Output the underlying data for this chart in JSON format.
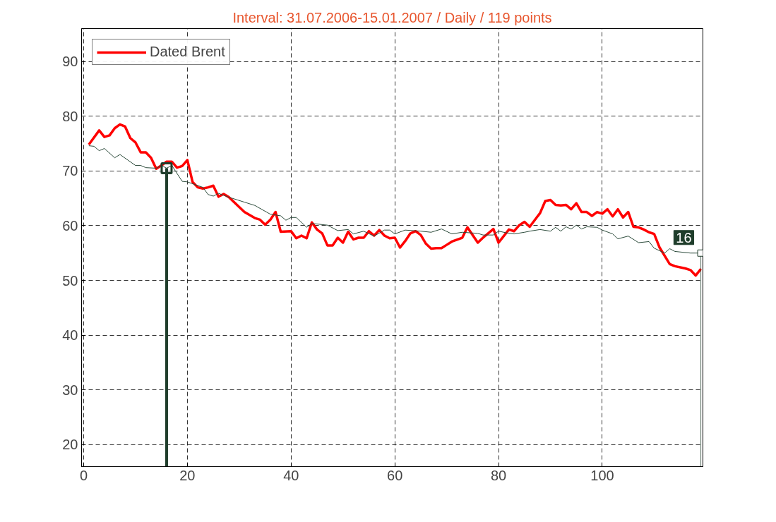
{
  "chart_data": {
    "type": "line",
    "title": "Interval: 31.07.2006-15.01.2007 / Daily / 119 points",
    "xlim": [
      -0.4,
      119.4
    ],
    "ylim": [
      16,
      96
    ],
    "xticks": [
      0,
      20,
      40,
      60,
      80,
      100
    ],
    "yticks": [
      20,
      30,
      40,
      50,
      60,
      70,
      80,
      90
    ],
    "grid": true,
    "legend": "top left",
    "annotations": [
      {
        "text": "16",
        "x": 119,
        "y": 55
      }
    ],
    "series": [
      {
        "name": "Dated Brent",
        "color": "#ff0000",
        "x": [
          1,
          3,
          4,
          5,
          6,
          7,
          8,
          9,
          10,
          11,
          12,
          13,
          14,
          15,
          16,
          17,
          18,
          19,
          20,
          21,
          22,
          23,
          24,
          25,
          26,
          27,
          28,
          29,
          31,
          33,
          34,
          35,
          36,
          37,
          38,
          40,
          41,
          42,
          43,
          44,
          45,
          46,
          47,
          48,
          49,
          50,
          51,
          52,
          53,
          54,
          55,
          56,
          57,
          58,
          59,
          60,
          61,
          62,
          63,
          64,
          65,
          66,
          67,
          68,
          69,
          70,
          71,
          73,
          74,
          75,
          76,
          77,
          78,
          79,
          80,
          81,
          82,
          83,
          84,
          85,
          86,
          88,
          89,
          90,
          91,
          92,
          93,
          94,
          95,
          96,
          97,
          98,
          99,
          100,
          101,
          102,
          103,
          104,
          105,
          106,
          107,
          108,
          109,
          110,
          111,
          113,
          114,
          116,
          117,
          118,
          119
        ],
        "values": [
          74.8,
          77.4,
          76.2,
          76.5,
          77.8,
          78.5,
          78.1,
          76,
          75.2,
          73.4,
          73.4,
          72.4,
          70.4,
          71,
          71.7,
          71.7,
          70.6,
          70.9,
          72,
          68,
          67,
          66.8,
          67,
          67.3,
          65.3,
          65.8,
          65.2,
          64.3,
          62.5,
          61.4,
          61.1,
          60.2,
          61.1,
          62.5,
          58.9,
          59,
          57.7,
          58.2,
          57.7,
          60.6,
          59.3,
          58.6,
          56.4,
          56.4,
          57.8,
          56.9,
          58.9,
          57.5,
          57.8,
          57.8,
          59,
          58.2,
          59.2,
          58.2,
          57.7,
          57.8,
          56,
          57.2,
          58.6,
          59,
          58.3,
          56.7,
          55.8,
          55.9,
          55.9,
          56.5,
          57.1,
          57.8,
          59.7,
          58.3,
          56.9,
          57.8,
          58.6,
          59.4,
          56.9,
          58.1,
          59.3,
          59,
          60.1,
          60.7,
          59.8,
          62.3,
          64.5,
          64.7,
          63.8,
          63.7,
          63.8,
          63,
          64.1,
          62.5,
          62.5,
          61.8,
          62.5,
          62.2,
          63,
          61.7,
          63,
          61.5,
          62.5,
          59.8,
          59.7,
          59.3,
          58.8,
          58.5,
          56.1,
          53,
          52.6,
          52.2,
          51.9,
          50.9,
          52.1
        ]
      },
      {
        "color": "#2b4a3a",
        "x": [
          1,
          2,
          3,
          4,
          6,
          7,
          10,
          11,
          12,
          14,
          15,
          16,
          17,
          19,
          20,
          23,
          24,
          25,
          26,
          28,
          31,
          33,
          36,
          38,
          39,
          40,
          41,
          43,
          44,
          45,
          47,
          49,
          51,
          52,
          54,
          56,
          58,
          59,
          60,
          62,
          65,
          67,
          69,
          71,
          73,
          76,
          77,
          79,
          80,
          82,
          83,
          85,
          86,
          88,
          90,
          91,
          92,
          93,
          94,
          95,
          96,
          97,
          99,
          100,
          102,
          103,
          105,
          107,
          109,
          110,
          112,
          113,
          114,
          117,
          118,
          119
        ],
        "values": [
          74.6,
          74.5,
          73.7,
          74.1,
          72.4,
          73,
          71,
          71,
          70.6,
          70.5,
          71,
          70.5,
          71,
          68.1,
          68,
          67,
          65.7,
          65.4,
          65.9,
          65.2,
          64.3,
          63.7,
          62.1,
          61.8,
          61,
          61.5,
          61.5,
          59.7,
          60.4,
          60.3,
          60.1,
          59.1,
          59.3,
          58.5,
          59,
          58.1,
          59.2,
          59.2,
          58.5,
          59.2,
          59,
          58.8,
          59.4,
          58.5,
          58.8,
          58.6,
          58.3,
          58.3,
          59,
          58.6,
          58.5,
          58.8,
          59,
          59.3,
          59,
          59.7,
          59,
          59.8,
          59.4,
          60.1,
          59.4,
          59.8,
          59.7,
          59.2,
          58.5,
          57.6,
          58.1,
          56.9,
          57.1,
          55.9,
          55,
          55.8,
          55.3,
          55,
          55,
          55
        ]
      }
    ],
    "ref_lines": [
      {
        "axis": "x",
        "value": 16,
        "color": "#1f3d2b"
      },
      {
        "axis": "x",
        "value": 119,
        "color": "#1f3d2b"
      }
    ]
  }
}
